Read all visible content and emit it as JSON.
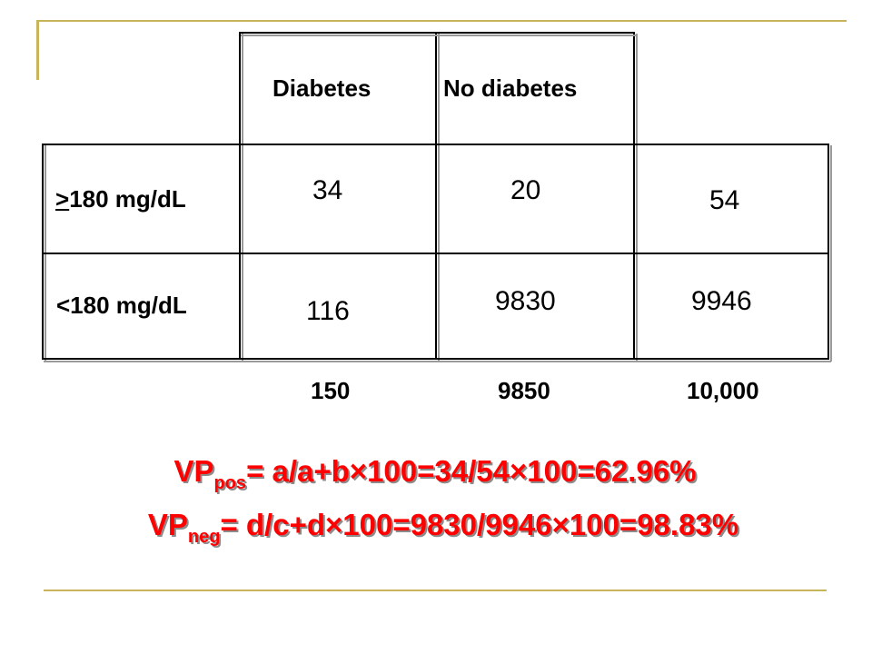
{
  "table": {
    "headers": {
      "diabetes": "Diabetes",
      "no_diabetes": "No diabetes"
    },
    "rows": [
      {
        "label_symbol": ">",
        "label_rest": "180 mg/dL",
        "diabetes": "34",
        "no_diabetes": "20",
        "total": "54"
      },
      {
        "label": "<180 mg/dL",
        "diabetes": "116",
        "no_diabetes": "9830",
        "total": "9946"
      }
    ],
    "totals": {
      "diabetes": "150",
      "no_diabetes": "9850",
      "grand": "10,000"
    }
  },
  "formulas": {
    "vp_pos": {
      "prefix": "VP",
      "sub": "pos",
      "text": "= a/a+b×100=34/54×100=62.96%"
    },
    "vp_neg": {
      "prefix": "VP",
      "sub": "neg",
      "text": "= d/c+d×100=9830/9946×100=98.83%"
    }
  },
  "colors": {
    "formula": "#ff0000",
    "accent_line": "#c8b45a"
  }
}
